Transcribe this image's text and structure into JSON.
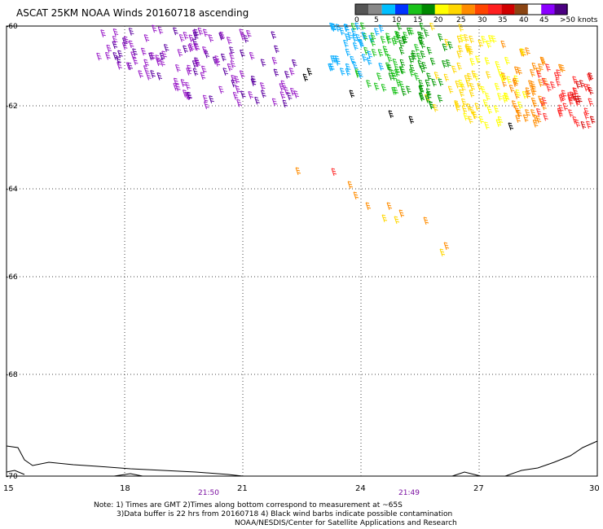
{
  "title": "ASCAT 25KM NOAA Winds 20160718 ascending",
  "legend": {
    "colors": [
      "#555555",
      "#888888",
      "#00bfff",
      "#0033ff",
      "#1ac21a",
      "#008800",
      "#ffff00",
      "#ffd700",
      "#ff8c00",
      "#ff4500",
      "#ff2020",
      "#d00000",
      "#8b4513",
      "#ffffff",
      "#8b00ff",
      "#4b0082"
    ],
    "labels": [
      "0",
      "5",
      "10",
      "15",
      "20",
      "25",
      "30",
      "35",
      "40",
      "45",
      ">50 knots"
    ]
  },
  "lat_labels": [
    "-60",
    "-62",
    "-64",
    "-66",
    "-68",
    "-70"
  ],
  "lon_labels": [
    "15",
    "18",
    "21",
    "24",
    "27",
    "30"
  ],
  "time_labels": [
    "21:50",
    "21:49"
  ],
  "notes": [
    "Note: 1) Times are GMT 2)Times along bottom correspond to measurement at ~65S",
    "3)Data buffer is 22 hrs from 20160718 4) Black wind barbs indicate possible contamination",
    "NOAA/NESDIS/Center for Satellite Applications and Research"
  ]
}
